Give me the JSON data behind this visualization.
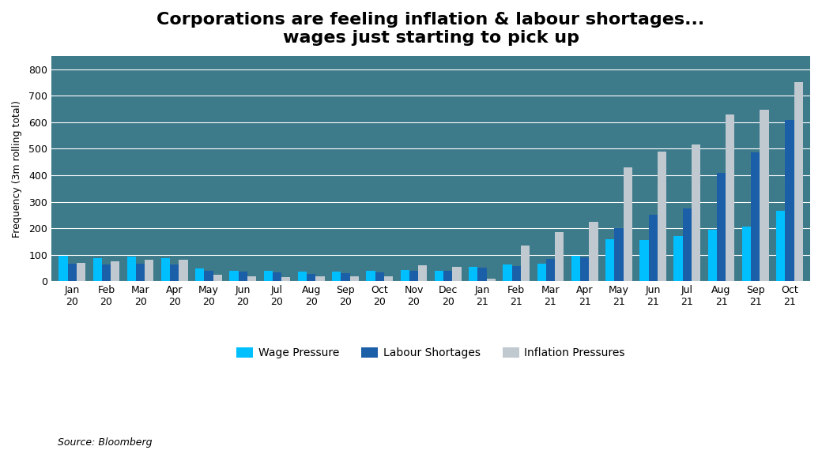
{
  "title": "Corporations are feeling inflation & labour shortages...\nwages just starting to pick up",
  "ylabel": "Frequency (3m rolling total)",
  "source": "Source: Bloomberg",
  "categories": [
    "Jan\n20",
    "Feb\n20",
    "Mar\n20",
    "Apr\n20",
    "May\n20",
    "Jun\n20",
    "Jul\n20",
    "Aug\n20",
    "Sep\n20",
    "Oct\n20",
    "Nov\n20",
    "Dec\n20",
    "Jan\n21",
    "Feb\n21",
    "Mar\n21",
    "Apr\n21",
    "May\n21",
    "Jun\n21",
    "Jul\n21",
    "Aug\n21",
    "Sep\n21",
    "Oct\n21"
  ],
  "wage_pressure": [
    95,
    88,
    92,
    88,
    48,
    40,
    38,
    35,
    35,
    38,
    42,
    40,
    55,
    62,
    65,
    95,
    160,
    155,
    170,
    195,
    205,
    265
  ],
  "labour_shortages": [
    65,
    62,
    65,
    62,
    40,
    35,
    32,
    28,
    30,
    32,
    38,
    38,
    50,
    58,
    85,
    90,
    200,
    250,
    275,
    410,
    485,
    608
  ],
  "inflation_pressures": [
    68,
    75,
    82,
    80,
    25,
    18,
    15,
    18,
    18,
    20,
    60,
    55,
    10,
    135,
    185,
    225,
    430,
    490,
    515,
    630,
    648,
    750
  ],
  "wage_color": "#00bfff",
  "labour_color": "#1b5fa8",
  "inflation_color": "#c0c8d0",
  "bg_color": "#3d7a8a",
  "grid_color": "#ffffff",
  "ylim": [
    0,
    850
  ],
  "yticks": [
    0,
    100,
    200,
    300,
    400,
    500,
    600,
    700,
    800
  ],
  "title_fontsize": 16,
  "legend_labels": [
    "Wage Pressure",
    "Labour Shortages",
    "Inflation Pressures"
  ]
}
